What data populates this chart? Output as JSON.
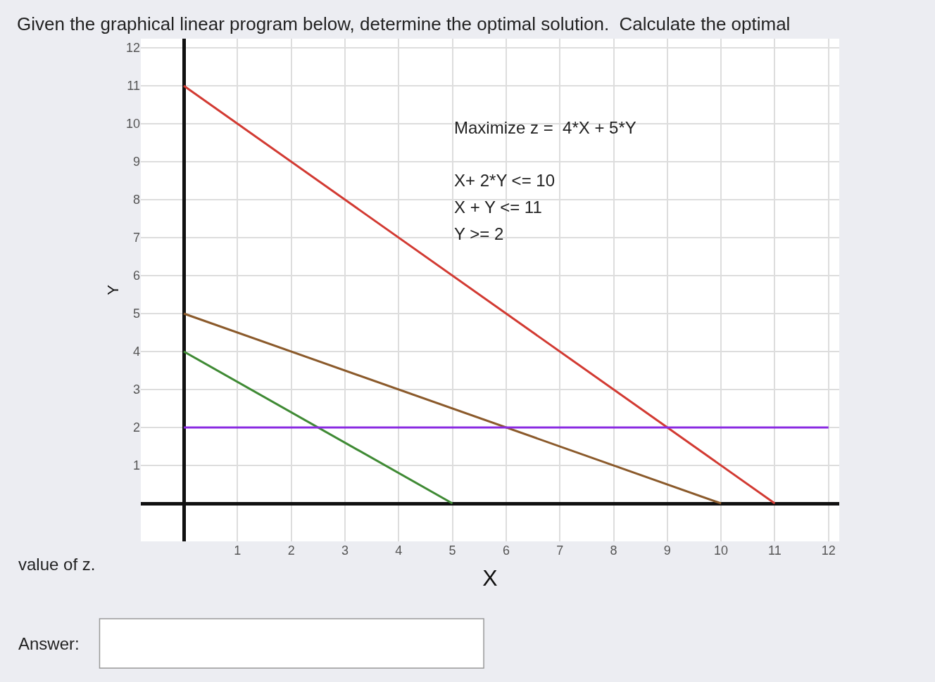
{
  "chart_data": {
    "type": "line",
    "title": "Given the graphical linear program below, determine the optimal solution.  Calculate the optimal",
    "xlabel": "X",
    "ylabel": "Y",
    "series": [
      {
        "color": "#d23a32",
        "x": [
          0,
          11
        ],
        "values": [
          11,
          0
        ]
      },
      {
        "color": "#8b5a2b",
        "x": [
          0,
          10
        ],
        "values": [
          5,
          0
        ]
      },
      {
        "color": "#3f8a34",
        "x": [
          0,
          5
        ],
        "values": [
          4,
          0
        ]
      },
      {
        "color": "#8a2be2",
        "x": [
          0,
          12
        ],
        "values": [
          2,
          2
        ]
      }
    ],
    "annotations": [
      "Maximize z =  4*X + 5*Y",
      "X+ 2*Y <= 10",
      "X + Y <= 11",
      "Y >= 2",
      "value of z.",
      "Answer:"
    ],
    "xlim": [
      -0.8,
      12.2
    ],
    "ylim": [
      -1.0,
      12.24
    ],
    "xticks": [
      1,
      2,
      3,
      4,
      5,
      6,
      7,
      8,
      9,
      10,
      11,
      12
    ],
    "yticks": [
      1,
      2,
      3,
      4,
      5,
      6,
      7,
      8,
      9,
      10,
      11,
      12
    ],
    "grid": true
  }
}
